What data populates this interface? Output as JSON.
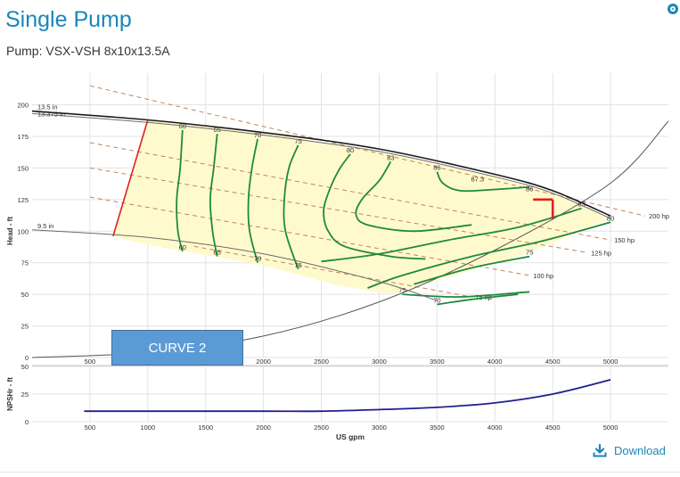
{
  "header": {
    "title": "Single Pump",
    "subtitle": "Pump: VSX-VSH 8x10x13.5A"
  },
  "overlay_label": "CURVE 2",
  "download_label": "Download",
  "icons": {
    "close": "close-circle-icon",
    "download": "download-icon"
  },
  "colors": {
    "title": "#1a86b8",
    "efficiency": "#1e8a3c",
    "region_fill": "#fffacd",
    "power": "#c0855a",
    "npsh": "#1f1f8f",
    "selection": "#e02020",
    "overlay_box": "#5b9bd5"
  },
  "chart_data": [
    {
      "type": "line",
      "title": "",
      "xlabel": "",
      "ylabel": "Head - ft",
      "xlim": [
        0,
        5500
      ],
      "ylim": [
        0,
        220
      ],
      "x_ticks": [
        500,
        1000,
        1500,
        2000,
        2500,
        3000,
        3500,
        4000,
        4500,
        5000
      ],
      "y_ticks": [
        0,
        25,
        50,
        75,
        100,
        125,
        150,
        175,
        200
      ],
      "grid": true,
      "impeller_curves": [
        {
          "name": "13.5 in",
          "points": [
            [
              0,
              195
            ],
            [
              1000,
              188
            ],
            [
              2000,
              178
            ],
            [
              3000,
              165
            ],
            [
              4000,
              145
            ],
            [
              4500,
              132
            ],
            [
              5000,
              112
            ]
          ]
        },
        {
          "name": "13.375 in",
          "points": [
            [
              0,
              193
            ],
            [
              1000,
              186
            ],
            [
              2000,
              176
            ],
            [
              3000,
              163
            ],
            [
              4000,
              143
            ],
            [
              4500,
              130
            ],
            [
              5000,
              110
            ]
          ]
        },
        {
          "name": "9.5 in",
          "points": [
            [
              0,
              101
            ],
            [
              1000,
              95
            ],
            [
              2000,
              82
            ],
            [
              3000,
              60
            ],
            [
              3500,
              45
            ]
          ]
        }
      ],
      "system_curve": {
        "points": [
          [
            0,
            0
          ],
          [
            1000,
            4
          ],
          [
            2000,
            17
          ],
          [
            3000,
            44
          ],
          [
            4000,
            85
          ],
          [
            5000,
            138
          ],
          [
            5500,
            187
          ]
        ]
      },
      "power_lines": [
        {
          "label": "200 hp",
          "points": [
            [
              500,
              215
            ],
            [
              5300,
              112
            ]
          ]
        },
        {
          "label": "150 hp",
          "points": [
            [
              500,
              170
            ],
            [
              5000,
              93
            ]
          ]
        },
        {
          "label": "125 hp",
          "points": [
            [
              500,
              150
            ],
            [
              4800,
              83
            ]
          ]
        },
        {
          "label": "100 hp",
          "points": [
            [
              500,
              127
            ],
            [
              4300,
              65
            ]
          ]
        },
        {
          "label": "75 hp",
          "points": [
            [
              1400,
              88
            ],
            [
              3800,
              48
            ]
          ]
        }
      ],
      "operating_region": [
        [
          700,
          96
        ],
        [
          1000,
          188
        ],
        [
          2000,
          178
        ],
        [
          3000,
          163
        ],
        [
          4000,
          143
        ],
        [
          4500,
          130
        ],
        [
          5000,
          110
        ],
        [
          4300,
          83
        ],
        [
          3100,
          50
        ],
        [
          2600,
          58
        ],
        [
          2000,
          73
        ],
        [
          1000,
          89
        ],
        [
          700,
          96
        ]
      ],
      "selection_marker": {
        "x": 4500,
        "y": 125
      },
      "efficiency_labels": [
        {
          "text": "60",
          "x": 1300,
          "y": 180
        },
        {
          "text": "65",
          "x": 1600,
          "y": 177
        },
        {
          "text": "70",
          "x": 1950,
          "y": 173
        },
        {
          "text": "75",
          "x": 2300,
          "y": 168
        },
        {
          "text": "80",
          "x": 2750,
          "y": 161
        },
        {
          "text": "83",
          "x": 3100,
          "y": 155
        },
        {
          "text": "86",
          "x": 3500,
          "y": 147
        },
        {
          "text": "87.3",
          "x": 3850,
          "y": 138
        },
        {
          "text": "86",
          "x": 4300,
          "y": 130
        },
        {
          "text": "83",
          "x": 4750,
          "y": 118
        },
        {
          "text": "80",
          "x": 5000,
          "y": 107
        },
        {
          "text": "60",
          "x": 1300,
          "y": 84
        },
        {
          "text": "65",
          "x": 1600,
          "y": 80
        },
        {
          "text": "70",
          "x": 1950,
          "y": 75
        },
        {
          "text": "75",
          "x": 2300,
          "y": 70
        },
        {
          "text": "75",
          "x": 4300,
          "y": 80
        },
        {
          "text": "75",
          "x": 3200,
          "y": 50
        },
        {
          "text": "70",
          "x": 3500,
          "y": 42
        }
      ]
    },
    {
      "type": "line",
      "title": "",
      "xlabel": "US gpm",
      "ylabel": "NPSHr - ft",
      "xlim": [
        0,
        5500
      ],
      "ylim": [
        0,
        50
      ],
      "x_ticks": [
        500,
        1000,
        1500,
        2000,
        2500,
        3000,
        3500,
        4000,
        4500,
        5000
      ],
      "y_ticks": [
        0,
        25,
        50
      ],
      "grid": true,
      "series": [
        {
          "x": [
            450,
            1000,
            2000,
            2500,
            3000,
            3500,
            4000,
            4500,
            5000
          ],
          "y": [
            9.5,
            9.5,
            9.5,
            9.5,
            11,
            13,
            17,
            25,
            38
          ]
        }
      ]
    }
  ]
}
